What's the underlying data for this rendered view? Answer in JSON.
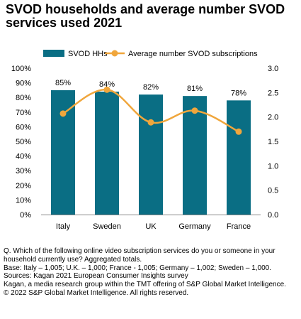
{
  "title": "SVOD households and average number SVOD services used 2021",
  "chart_data": {
    "type": "bar",
    "categories": [
      "Italy",
      "Sweden",
      "UK",
      "Germany",
      "France"
    ],
    "series": [
      {
        "name": "SVOD HHs",
        "type": "bar",
        "axis": "left",
        "values": [
          85,
          84,
          82,
          81,
          78
        ],
        "labels": [
          "85%",
          "84%",
          "82%",
          "81%",
          "78%"
        ],
        "color": "#0a6e84"
      },
      {
        "name": "Average number SVOD subscriptions",
        "type": "line",
        "axis": "right",
        "values": [
          2.07,
          2.56,
          1.89,
          2.13,
          1.7
        ],
        "color": "#f0a63c"
      }
    ],
    "y_left": {
      "min": 0,
      "max": 100,
      "step": 10,
      "ticks": [
        "0%",
        "10%",
        "20%",
        "30%",
        "40%",
        "50%",
        "60%",
        "70%",
        "80%",
        "90%",
        "100%"
      ]
    },
    "y_right": {
      "min": 0,
      "max": 3,
      "step": 0.5,
      "ticks": [
        "0.0",
        "0.5",
        "1.0",
        "1.5",
        "2.0",
        "2.5",
        "3.0"
      ]
    },
    "legend_position": "top",
    "grid": false
  },
  "footer": [
    "Q. Which of the following online video subscription services do you or someone in your household currently use? Aggregated totals.",
    "Base: Italy – 1,005; U.K. – 1,000; France - 1,005; Germany – 1,002; Sweden – 1,000.",
    "Sources: Kagan 2021 European Consumer Insights survey",
    "Kagan, a media research group within the TMT offering of S&P Global Market Intelligence.",
    "© 2022 S&P Global Market Intelligence.  All rights reserved."
  ]
}
